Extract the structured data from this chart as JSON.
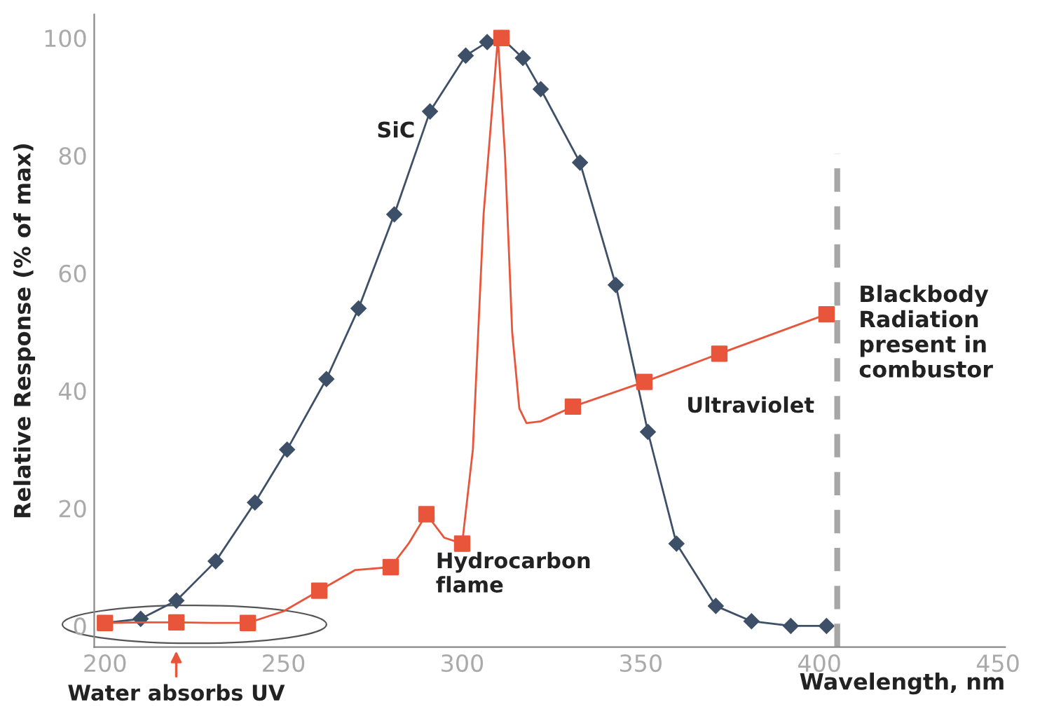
{
  "chart_data": {
    "type": "line",
    "xlabel": "Wavelength, nm",
    "ylabel": "Relative Response (% of max)",
    "xlim": [
      197,
      452
    ],
    "ylim": [
      -3.6,
      104
    ],
    "xticks": [
      200,
      250,
      300,
      350,
      400,
      450
    ],
    "yticks": [
      0,
      20,
      40,
      60,
      80,
      100
    ],
    "grid": false,
    "legend": false,
    "series": [
      {
        "color": "#3d5068",
        "marker": "diamond",
        "x": [
          200,
          210,
          220,
          231,
          242,
          251,
          262,
          271,
          281,
          291,
          301,
          307,
          311,
          317,
          322,
          333,
          343,
          352,
          360,
          371,
          381,
          392,
          402
        ],
        "values": [
          0.5,
          1.2,
          4.3,
          11,
          21,
          30,
          42,
          54,
          70,
          87.5,
          97,
          99.3,
          100,
          96.6,
          91.3,
          78.8,
          58,
          33,
          14,
          3.4,
          0.8,
          0,
          0
        ]
      },
      {
        "color": "#e8553a",
        "marker": "none",
        "x": [
          200,
          210,
          220,
          230,
          240,
          250,
          260,
          270,
          280,
          285,
          290,
          295,
          300,
          303,
          306,
          310,
          312,
          314,
          316,
          318,
          322,
          331,
          351,
          372,
          402
        ],
        "values": [
          0.5,
          0.6,
          0.6,
          0.5,
          0.5,
          2.5,
          6,
          9.5,
          10,
          14,
          19,
          15,
          14,
          30,
          70,
          100,
          80,
          50,
          37,
          34.5,
          34.8,
          37.3,
          41.5,
          46.3,
          53
        ]
      },
      {
        "type": "scatter",
        "color": "#e8553a",
        "marker": "square",
        "x": [
          200,
          220,
          240,
          260,
          280,
          290,
          300,
          311,
          331,
          351,
          372,
          402
        ],
        "values": [
          0.5,
          0.6,
          0.5,
          6,
          10,
          19,
          14,
          100,
          37.3,
          41.5,
          46.3,
          53
        ]
      }
    ],
    "ref_lines": [
      {
        "axis": "x",
        "value": 405,
        "label": "Blackbody\nRadiation\npresent in\ncombustor",
        "color": "#a6a6a6",
        "line_style": "dashed"
      }
    ],
    "annotations": [
      "SiC",
      "Hydrocarbon\nflame",
      "Ultraviolet",
      "Water absorbs UV"
    ]
  }
}
